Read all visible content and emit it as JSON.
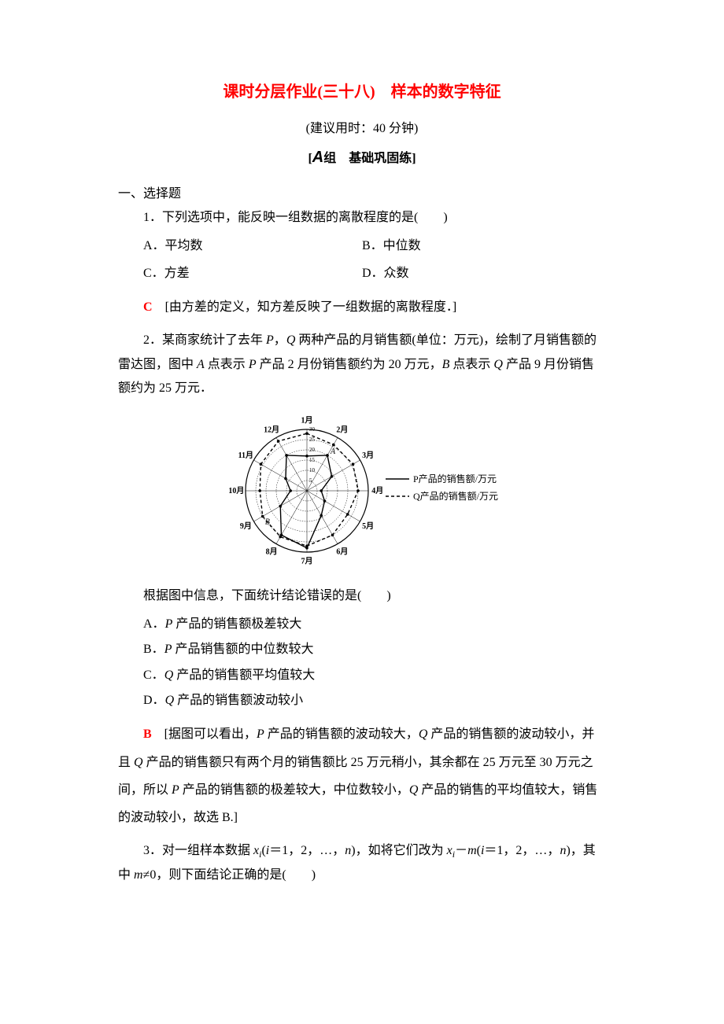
{
  "title": "课时分层作业(三十八)　样本的数字特征",
  "time_note": "(建议用时：40 分钟)",
  "group_heading_prefix": "[",
  "group_heading_a": "A",
  "group_heading_label": "组　基础巩固练",
  "group_heading_suffix": "]",
  "section_one_heading": "一、选择题",
  "q1": {
    "text": "1．下列选项中，能反映一组数据的离散程度的是(　　)",
    "optA": "A．平均数",
    "optB": "B．中位数",
    "optC": "C．方差",
    "optD": "D．众数",
    "answer_letter": "C",
    "answer_body": "　[由方差的定义，知方差反映了一组数据的离散程度．]"
  },
  "q2": {
    "intro_part1": "2．某商家统计了去年 ",
    "intro_P": "P",
    "intro_part2": "，",
    "intro_Q": "Q",
    "intro_part3": " 两种产品的月销售额(单位：万元)，绘制了月销售额的雷达图，图中 ",
    "intro_A": "A",
    "intro_part4": " 点表示 ",
    "intro_P2": "P",
    "intro_part5": " 产品 2 月份销售额约为 20 万元，",
    "intro_B": "B",
    "intro_part6": " 点表示 ",
    "intro_Q2": "Q",
    "intro_part7": " 产品 9 月份销售额约为 25 万元．",
    "radar": {
      "months": [
        "1月",
        "2月",
        "3月",
        "4月",
        "5月",
        "6月",
        "7月",
        "8月",
        "9月",
        "10月",
        "11月",
        "12月"
      ],
      "rings": [
        5,
        10,
        15,
        20,
        25,
        30
      ],
      "P_values": [
        17,
        20,
        14,
        7,
        10,
        14,
        28,
        25,
        15,
        8,
        12,
        20
      ],
      "Q_values": [
        28,
        26,
        26,
        25,
        23,
        25,
        27,
        26,
        25,
        23,
        26,
        28
      ],
      "P_color": "#000000",
      "Q_color": "#000000",
      "legend_P": "P产品的销售额/万元",
      "legend_Q": "Q产品的销售额/万元",
      "point_A_label": "A",
      "point_B_label": "B",
      "ring_labels": [
        "5",
        "10",
        "15",
        "20",
        "25",
        "30"
      ]
    },
    "prompt": "根据图中信息，下面统计结论错误的是(　　)",
    "optA_pre": "A．",
    "optA_body": " 产品的销售额极差较大",
    "optB_pre": "B．",
    "optB_body": " 产品销售额的中位数较大",
    "optC_pre": "C．",
    "optC_body": " 产品的销售额平均值较大",
    "optD_pre": "D．",
    "optD_body": " 产品的销售额波动较小",
    "answer_letter": "B",
    "answer_p1": "　[据图可以看出，",
    "answer_p2": " 产品的销售额的波动较大，",
    "answer_p3": " 产品的销售额的波动较小，并且 ",
    "answer_p4": " 产品的销售额只有两个月的销售额比 25 万元稍小，其余都在 25 万元至 30 万元之间，所以 ",
    "answer_p5": " 产品的销售额的极差较大，中位数较小，",
    "answer_p6": " 产品的销售的平均值较大，销售的波动较小，故选 B.]"
  },
  "q3": {
    "p1": "3．对一组样本数据 ",
    "x": "x",
    "sub_i": "i",
    "p2": "(",
    "i": "i",
    "p3": "＝1，2，…，",
    "n": "n",
    "p4": ")，如将它们改为 ",
    "p5": "－",
    "m": "m",
    "p6": "(",
    "p7": "＝1，2，…，",
    "p8": ")，其中 ",
    "p9": "≠0，则下面结论正确的是(　　)"
  }
}
